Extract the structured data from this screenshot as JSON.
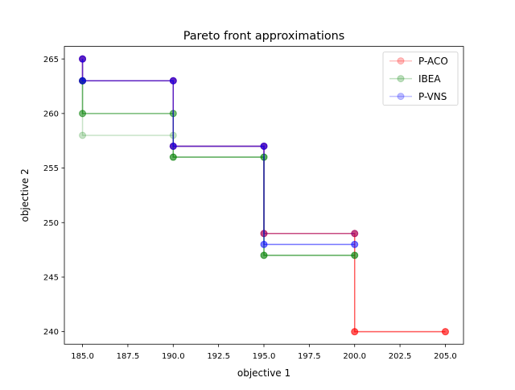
{
  "chart_data": {
    "type": "line",
    "title": "Pareto front approximations",
    "xlabel": "objective 1",
    "ylabel": "objective 2",
    "xlim": [
      184.0,
      206.0
    ],
    "ylim": [
      238.85,
      266.15
    ],
    "x_ticks": [
      185.0,
      187.5,
      190.0,
      192.5,
      195.0,
      197.5,
      200.0,
      202.5,
      205.0
    ],
    "x_tick_labels": [
      "185.0",
      "187.5",
      "190.0",
      "192.5",
      "195.0",
      "197.5",
      "200.0",
      "202.5",
      "205.0"
    ],
    "y_ticks": [
      240,
      245,
      250,
      255,
      260,
      265
    ],
    "y_tick_labels": [
      "240",
      "245",
      "250",
      "255",
      "260",
      "265"
    ],
    "grid": false,
    "legend_position": "top-right",
    "step_style": "post",
    "series": [
      {
        "name": "P-ACO",
        "color": "#ff0000",
        "runs": [
          {
            "points": [
              [
                185,
                265
              ],
              [
                185,
                263
              ],
              [
                190,
                263
              ],
              [
                190,
                257
              ],
              [
                195,
                257
              ],
              [
                195,
                249
              ],
              [
                200,
                249
              ],
              [
                200,
                240
              ],
              [
                205,
                240
              ]
            ]
          },
          {
            "points": [
              [
                185,
                265
              ],
              [
                185,
                263
              ],
              [
                190,
                263
              ],
              [
                190,
                257
              ],
              [
                195,
                257
              ],
              [
                195,
                249
              ],
              [
                200,
                249
              ],
              [
                200,
                240
              ],
              [
                205,
                240
              ]
            ]
          },
          {
            "points": [
              [
                185,
                265
              ],
              [
                185,
                263
              ],
              [
                190,
                263
              ],
              [
                190,
                257
              ],
              [
                195,
                257
              ],
              [
                195,
                249
              ],
              [
                200,
                249
              ],
              [
                200,
                240
              ],
              [
                205,
                240
              ]
            ]
          },
          {
            "points": [
              [
                185,
                265
              ],
              [
                185,
                263
              ],
              [
                190,
                263
              ],
              [
                190,
                257
              ],
              [
                195,
                257
              ],
              [
                195,
                249
              ],
              [
                200,
                249
              ],
              [
                200,
                240
              ],
              [
                205,
                240
              ]
            ]
          }
        ]
      },
      {
        "name": "IBEA",
        "color": "#008000",
        "runs": [
          {
            "points": [
              [
                185,
                263
              ],
              [
                185,
                258
              ],
              [
                190,
                258
              ],
              [
                190,
                256
              ],
              [
                195,
                256
              ],
              [
                195,
                247
              ],
              [
                200,
                247
              ]
            ]
          },
          {
            "points": [
              [
                185,
                263
              ],
              [
                185,
                260
              ],
              [
                190,
                260
              ],
              [
                190,
                256
              ],
              [
                195,
                256
              ],
              [
                195,
                247
              ],
              [
                200,
                247
              ]
            ]
          },
          {
            "points": [
              [
                185,
                263
              ],
              [
                185,
                260
              ],
              [
                190,
                260
              ],
              [
                190,
                256
              ],
              [
                195,
                256
              ],
              [
                195,
                247
              ],
              [
                200,
                247
              ]
            ]
          },
          {
            "points": [
              [
                185,
                263
              ],
              [
                185,
                260
              ],
              [
                190,
                260
              ],
              [
                190,
                256
              ],
              [
                195,
                256
              ],
              [
                195,
                247
              ],
              [
                200,
                247
              ]
            ]
          }
        ]
      },
      {
        "name": "P-VNS",
        "color": "#0000ff",
        "runs": [
          {
            "points": [
              [
                185,
                265
              ],
              [
                185,
                263
              ],
              [
                190,
                263
              ],
              [
                190,
                257
              ],
              [
                195,
                257
              ],
              [
                195,
                248
              ],
              [
                200,
                248
              ]
            ]
          },
          {
            "points": [
              [
                185,
                265
              ],
              [
                185,
                263
              ],
              [
                190,
                263
              ],
              [
                190,
                257
              ],
              [
                195,
                257
              ],
              [
                195,
                248
              ],
              [
                200,
                248
              ]
            ]
          },
          {
            "points": [
              [
                185,
                265
              ],
              [
                185,
                263
              ],
              [
                190,
                263
              ],
              [
                190,
                257
              ],
              [
                195,
                257
              ],
              [
                195,
                248
              ],
              [
                200,
                248
              ]
            ]
          },
          {
            "points": [
              [
                185,
                265
              ],
              [
                185,
                263
              ],
              [
                190,
                263
              ],
              [
                190,
                257
              ],
              [
                195,
                257
              ],
              [
                195,
                249
              ],
              [
                200,
                249
              ]
            ]
          }
        ]
      }
    ]
  }
}
